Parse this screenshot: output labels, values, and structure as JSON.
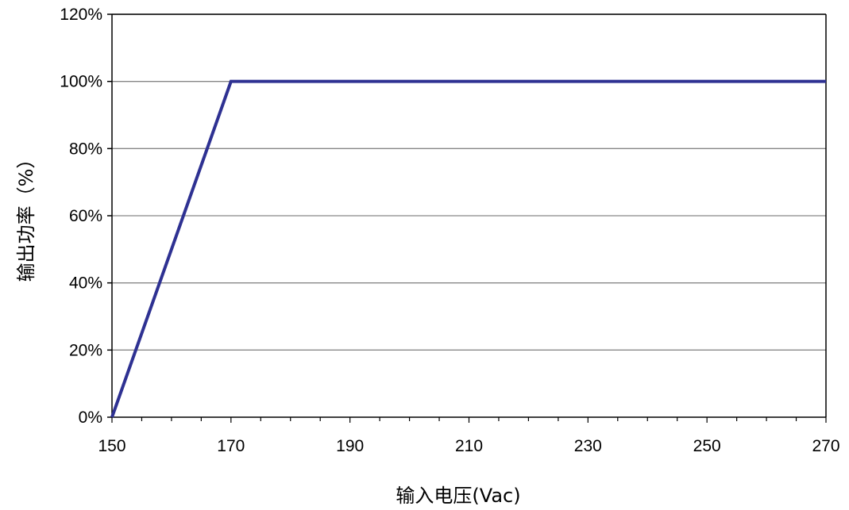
{
  "chart_data": {
    "type": "line",
    "title": "",
    "xlabel": "输入电压(Vac)",
    "ylabel": "输出功率（%）",
    "xlim": [
      150,
      270
    ],
    "ylim": [
      0,
      120
    ],
    "x_ticks": [
      150,
      170,
      190,
      210,
      230,
      250,
      270
    ],
    "x_tick_labels": [
      "150",
      "170",
      "190",
      "210",
      "230",
      "250",
      "270"
    ],
    "x_minor_tick_step": 5,
    "y_ticks": [
      0,
      20,
      40,
      60,
      80,
      100,
      120
    ],
    "y_tick_labels": [
      "0%",
      "20%",
      "40%",
      "60%",
      "80%",
      "100%",
      "120%"
    ],
    "grid": "horizontal",
    "legend": "none",
    "series": [
      {
        "x": [
          150,
          170,
          270
        ],
        "y": [
          0,
          100,
          100
        ],
        "color": "#2e3192"
      }
    ],
    "colors": {
      "line": "#2e3192",
      "grid": "#878787",
      "axis": "#000000"
    }
  }
}
